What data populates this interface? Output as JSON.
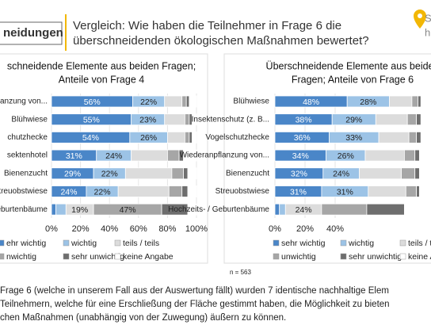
{
  "header": {
    "section": "neidungen",
    "title_lines": [
      "Vergleich: Wie haben die Teilnehmer in Frage 6 die",
      "überschneidenden ökologischen Maßnahmen bewertet?"
    ],
    "logo_text": [
      "S",
      "h"
    ]
  },
  "chart_data": [
    {
      "type": "stacked-bar-horizontal",
      "title_lines": [
        "schneidende Elemente aus beiden Fragen;",
        "Anteile von Frage 4"
      ],
      "categories": [
        "anzung von...",
        "Blühwiese",
        "chutzhecke",
        "sektenhotel",
        "Bienenzucht",
        "treuobstwiese",
        "eburtenbäume"
      ],
      "xlim": [
        0,
        100
      ],
      "xticks": [
        {
          "value": 0,
          "label": "0%"
        },
        {
          "value": 20,
          "label": "20%"
        },
        {
          "value": 40,
          "label": "40%"
        },
        {
          "value": 60,
          "label": "60%"
        },
        {
          "value": 80,
          "label": "80%"
        },
        {
          "value": 100,
          "label": "100%"
        }
      ],
      "series": [
        {
          "name": "ehr wichtig",
          "color": "#4a86c8",
          "values": [
            56,
            55,
            54,
            31,
            29,
            24,
            3
          ],
          "value_labels": [
            "56%",
            "55%",
            "54%",
            "31%",
            "29%",
            "24%",
            null
          ]
        },
        {
          "name": "wichtig",
          "color": "#9cc3e6",
          "values": [
            22,
            23,
            26,
            24,
            22,
            22,
            7
          ],
          "value_labels": [
            "22%",
            "23%",
            "26%",
            "24%",
            "22%",
            "22%",
            null
          ]
        },
        {
          "name": "teils / teils",
          "color": "#dcdcdc",
          "values": [
            12,
            14,
            12,
            25,
            32,
            35,
            19
          ],
          "value_labels": [
            null,
            null,
            null,
            null,
            null,
            null,
            "19%"
          ]
        },
        {
          "name": "nwichtig",
          "color": "#a6a6a6",
          "values": [
            3,
            3,
            3,
            8,
            8,
            9,
            47
          ],
          "value_labels": [
            null,
            null,
            null,
            null,
            null,
            null,
            "47%"
          ]
        },
        {
          "name": "sehr unwichtig",
          "color": "#6e6e6e",
          "values": [
            2,
            2,
            2,
            3,
            3,
            4,
            18
          ],
          "value_labels": [
            null,
            null,
            null,
            null,
            null,
            null,
            null
          ]
        },
        {
          "name": "keine Angabe",
          "color": "#ffffff",
          "values": [
            5,
            3,
            3,
            9,
            6,
            6,
            6
          ],
          "value_labels": [
            null,
            null,
            null,
            null,
            null,
            null,
            null
          ]
        }
      ]
    },
    {
      "type": "stacked-bar-horizontal",
      "title_lines": [
        "Überschneidende Elemente aus beiden",
        "Fragen; Anteile von Frage 6"
      ],
      "categories": [
        "Blühwiese",
        "Insektenschutz (z. B...",
        "Vogelschutzhecke",
        "Wiederanpflanzung von...",
        "Bienenzucht",
        "Streuobstwiese",
        "Hochzeits- / Geburtenbäume"
      ],
      "xlim": [
        0,
        100
      ],
      "xticks": [
        {
          "value": 0,
          "label": "0%"
        },
        {
          "value": 20,
          "label": "20%"
        },
        {
          "value": 40,
          "label": "40%"
        }
      ],
      "note": "n = 563",
      "series": [
        {
          "name": "sehr wichtig",
          "color": "#4a86c8",
          "values": [
            48,
            38,
            36,
            34,
            32,
            31,
            3
          ],
          "value_labels": [
            "48%",
            "38%",
            "36%",
            "34%",
            "32%",
            "31%",
            null
          ]
        },
        {
          "name": "wichtig",
          "color": "#9cc3e6",
          "values": [
            28,
            29,
            33,
            26,
            24,
            31,
            4
          ],
          "value_labels": [
            "28%",
            "29%",
            "33%",
            "26%",
            "24%",
            "31%",
            null
          ]
        },
        {
          "name": "teils / t",
          "color": "#dcdcdc",
          "values": [
            15,
            21,
            20,
            26,
            28,
            25,
            24
          ],
          "value_labels": [
            null,
            null,
            null,
            null,
            null,
            null,
            "24%"
          ]
        },
        {
          "name": "unwichtig",
          "color": "#a6a6a6",
          "values": [
            4,
            6,
            5,
            7,
            9,
            7,
            30
          ],
          "value_labels": [
            null,
            null,
            null,
            null,
            null,
            null,
            null
          ]
        },
        {
          "name": "sehr unwichtig",
          "color": "#6e6e6e",
          "values": [
            2,
            3,
            3,
            3,
            3,
            2,
            25
          ],
          "value_labels": [
            null,
            null,
            null,
            null,
            null,
            null,
            null
          ]
        },
        {
          "name": "keine A",
          "color": "#ffffff",
          "values": [
            3,
            3,
            3,
            4,
            4,
            4,
            14
          ],
          "value_labels": [
            null,
            null,
            null,
            null,
            null,
            null,
            null
          ]
        }
      ]
    }
  ],
  "footer_lines": [
    "Frage 6 (welche in unserem Fall aus der Auswertung fällt) wurden 7 identische nachhaltige Elem",
    "Teilnehmern, welche für eine Erschließung der Fläche gestimmt haben, die Möglichkeit zu bieten",
    "chen Maßnahmen (unabhängig von der Zuwegung) äußern zu können."
  ]
}
